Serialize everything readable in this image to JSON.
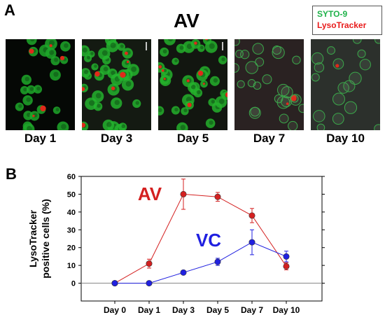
{
  "panel_a": {
    "letter": "A",
    "title": "AV",
    "legend": [
      "SYTO-9",
      "LysoTracker"
    ],
    "legend_colors": [
      "#1fb24a",
      "#e81b1b"
    ],
    "images": [
      {
        "label": "Day 1"
      },
      {
        "label": "Day 3"
      },
      {
        "label": "Day 5"
      },
      {
        "label": "Day 7"
      },
      {
        "label": "Day 10"
      }
    ]
  },
  "panel_b": {
    "letter": "B"
  },
  "chart_data": {
    "type": "line",
    "categories": [
      "Day 0",
      "Day 1",
      "Day 3",
      "Day 5",
      "Day 7",
      "Day 10"
    ],
    "ylabel": "LysoTracker\npositive cells (%)",
    "yticks": [
      0,
      10,
      20,
      30,
      40,
      50,
      60
    ],
    "ylim": [
      -10,
      60
    ],
    "grid": false,
    "series": [
      {
        "name": "AV",
        "color": "#d42020",
        "values": [
          0,
          11,
          50,
          48.5,
          38,
          9.5
        ],
        "err": [
          0,
          2.5,
          8.5,
          2.5,
          4,
          2
        ]
      },
      {
        "name": "VC",
        "color": "#2020e0",
        "values": [
          0,
          0,
          6,
          12,
          23,
          15
        ],
        "err": [
          0,
          0,
          1,
          2,
          7,
          3
        ]
      }
    ]
  }
}
